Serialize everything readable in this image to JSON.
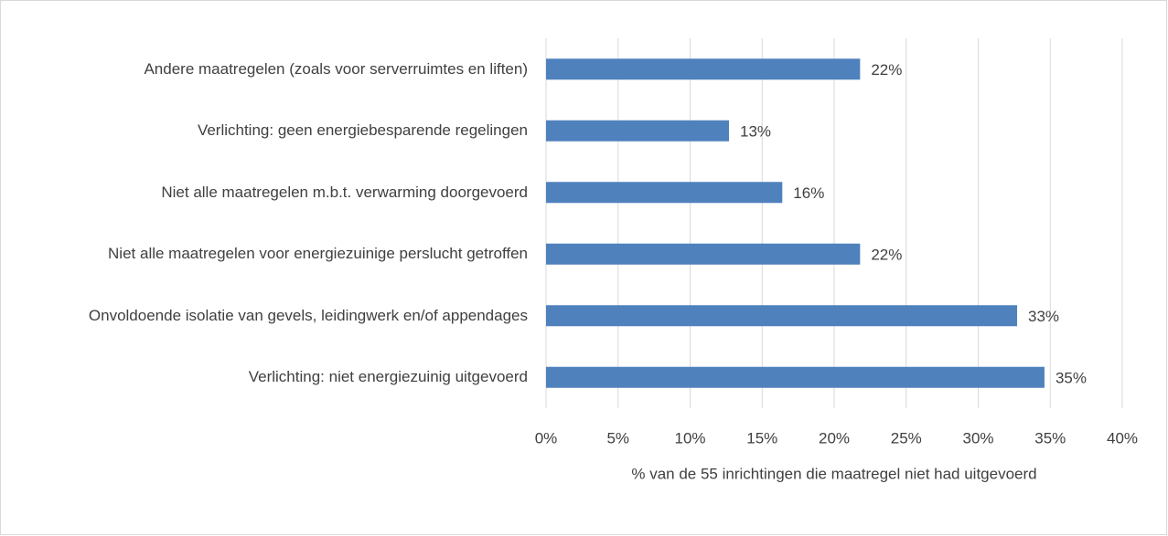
{
  "chart_data": {
    "type": "bar",
    "orientation": "horizontal",
    "categories": [
      "Andere maatregelen (zoals voor serverruimtes en liften)",
      "Verlichting: geen energiebesparende regelingen",
      "Niet alle maatregelen m.b.t. verwarming doorgevoerd",
      "Niet alle maatregelen voor energiezuinige perslucht getroffen",
      "Onvoldoende isolatie van gevels, leidingwerk en/of appendages",
      "Verlichting: niet energiezuinig uitgevoerd"
    ],
    "values": [
      21.8,
      12.7,
      16.4,
      21.8,
      32.7,
      34.6
    ],
    "value_labels": [
      "22%",
      "13%",
      "16%",
      "22%",
      "33%",
      "35%"
    ],
    "color": "#4f81bd",
    "xlim": [
      0,
      40
    ],
    "xticks": [
      {
        "value": 0,
        "label": "0%"
      },
      {
        "value": 5,
        "label": "5%"
      },
      {
        "value": 10,
        "label": "10%"
      },
      {
        "value": 15,
        "label": "15%"
      },
      {
        "value": 20,
        "label": "20%"
      },
      {
        "value": 25,
        "label": "25%"
      },
      {
        "value": 30,
        "label": "30%"
      },
      {
        "value": 35,
        "label": "35%"
      },
      {
        "value": 40,
        "label": "40%"
      }
    ],
    "xlabel": "% van de 55 inrichtingen die maatregel niet had uitgevoerd",
    "grid": true
  }
}
